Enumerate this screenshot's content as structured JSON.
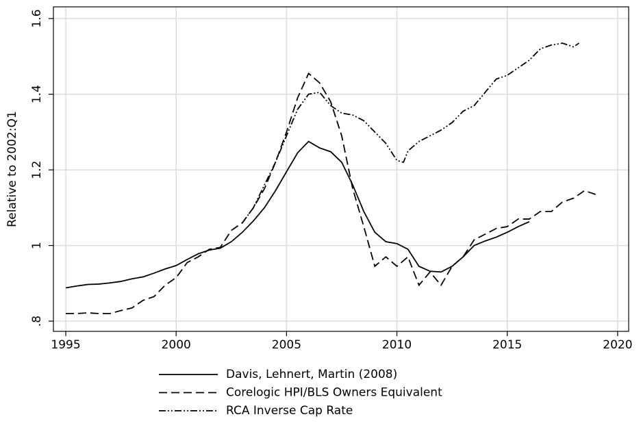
{
  "chart_data": {
    "type": "line",
    "y_label": "Relative to 2002:Q1",
    "xlim": [
      1994.44,
      2020.5
    ],
    "xticks": [
      1995,
      2000,
      2005,
      2010,
      2015,
      2020
    ],
    "ylim": [
      0.773,
      1.631
    ],
    "yticks": [
      {
        "value": 0.8,
        "label": ".8"
      },
      1,
      1.2,
      1.4,
      1.6
    ],
    "grid": true,
    "legend": "bottom",
    "series": [
      {
        "name": "Davis, Lehnert, Martin (2008)",
        "color": "#000000",
        "dash": "solid",
        "x": [
          1995,
          1995.5,
          1996,
          1996.5,
          1997,
          1997.5,
          1998,
          1998.5,
          1999,
          1999.5,
          2000,
          2000.5,
          2001,
          2001.5,
          2002,
          2002.5,
          2003,
          2003.5,
          2004,
          2004.5,
          2005,
          2005.5,
          2006,
          2006.5,
          2007,
          2007.5,
          2008,
          2008.5,
          2009,
          2009.5,
          2010,
          2010.5,
          2011,
          2011.5,
          2012,
          2012.5,
          2013,
          2013.5,
          2014,
          2014.5,
          2015,
          2015.5,
          2016
        ],
        "values": [
          0.888,
          0.893,
          0.897,
          0.898,
          0.901,
          0.905,
          0.912,
          0.917,
          0.927,
          0.938,
          0.947,
          0.963,
          0.978,
          0.988,
          0.993,
          1.01,
          1.035,
          1.065,
          1.1,
          1.145,
          1.195,
          1.245,
          1.275,
          1.258,
          1.248,
          1.22,
          1.16,
          1.09,
          1.035,
          1.01,
          1.005,
          0.99,
          0.945,
          0.932,
          0.93,
          0.945,
          0.97,
          1.0,
          1.012,
          1.022,
          1.035,
          1.05,
          1.063
        ]
      },
      {
        "name": "Corelogic HPI/BLS Owners Equivalent",
        "color": "#000000",
        "dash": "dashed",
        "x": [
          1995,
          1995.5,
          1996,
          1996.5,
          1997,
          1997.5,
          1998,
          1998.5,
          1999,
          1999.5,
          2000,
          2000.5,
          2001,
          2001.5,
          2002,
          2002.5,
          2003,
          2003.5,
          2004,
          2004.5,
          2005,
          2005.5,
          2006,
          2006.5,
          2007,
          2007.5,
          2008,
          2008.5,
          2009,
          2009.5,
          2010,
          2010.5,
          2011,
          2011.5,
          2012,
          2012.5,
          2013,
          2013.5,
          2014,
          2014.5,
          2015,
          2015.5,
          2016,
          2016.5,
          2017,
          2017.5,
          2018,
          2018.5,
          2019
        ],
        "values": [
          0.82,
          0.82,
          0.822,
          0.82,
          0.82,
          0.828,
          0.835,
          0.855,
          0.865,
          0.895,
          0.915,
          0.955,
          0.97,
          0.99,
          0.995,
          1.04,
          1.06,
          1.1,
          1.15,
          1.22,
          1.3,
          1.39,
          1.455,
          1.43,
          1.38,
          1.29,
          1.15,
          1.05,
          0.945,
          0.97,
          0.945,
          0.97,
          0.895,
          0.93,
          0.895,
          0.945,
          0.97,
          1.015,
          1.03,
          1.045,
          1.05,
          1.07,
          1.07,
          1.09,
          1.09,
          1.115,
          1.125,
          1.145,
          1.135
        ]
      },
      {
        "name": "RCA Inverse Cap Rate",
        "color": "#000000",
        "dash": "dashdot",
        "x": [
          2003,
          2003.5,
          2004,
          2004.5,
          2005,
          2005.5,
          2006,
          2006.5,
          2007,
          2007.5,
          2008,
          2008.5,
          2009,
          2009.5,
          2010,
          2010.3,
          2010.5,
          2011,
          2011.5,
          2012,
          2012.5,
          2013,
          2013.5,
          2014,
          2014.5,
          2015,
          2015.5,
          2016,
          2016.5,
          2017,
          2017.5,
          2018,
          2018.25
        ],
        "values": [
          1.06,
          1.1,
          1.16,
          1.22,
          1.29,
          1.36,
          1.4,
          1.405,
          1.37,
          1.35,
          1.345,
          1.33,
          1.3,
          1.27,
          1.225,
          1.22,
          1.25,
          1.275,
          1.29,
          1.305,
          1.325,
          1.355,
          1.37,
          1.405,
          1.44,
          1.45,
          1.47,
          1.49,
          1.52,
          1.53,
          1.535,
          1.525,
          1.535
        ]
      }
    ]
  }
}
